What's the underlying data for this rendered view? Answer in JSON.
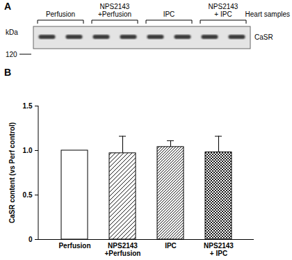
{
  "blot": {
    "label": "A",
    "header": "Heart samples",
    "groups": [
      "Perfusion",
      "NPS2143\n+Perfusion",
      "IPC",
      "NPS2143\n+ IPC"
    ],
    "lanes_per_group": 2,
    "band": "CaSR",
    "unit": "kDa",
    "marker": 120
  },
  "chart_data": {
    "type": "bar",
    "panel_label": "B",
    "categories": [
      "Perfusion",
      "NPS2143\n+Perfusion",
      "IPC",
      "NPS2143\n+ IPC"
    ],
    "values": [
      1.0,
      0.97,
      1.04,
      0.98
    ],
    "errors": [
      null,
      0.19,
      0.07,
      0.18
    ],
    "colors": [
      "#ffffff",
      "#ffffff",
      "#ffffff",
      "#ffffff"
    ],
    "ylabel": "CaSR content (vs Perf control)",
    "ylim": [
      0,
      1.5
    ],
    "yticks": [
      0,
      0.5,
      {
        "value": 1,
        "label": "1.0"
      },
      1.5
    ]
  }
}
